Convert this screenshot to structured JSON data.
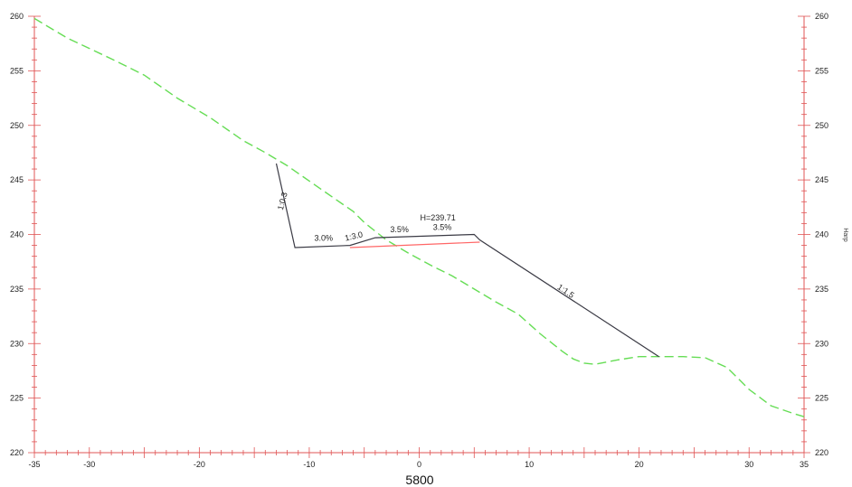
{
  "chart_data": {
    "type": "line",
    "title": "5800",
    "xlabel": "",
    "ylabel": "",
    "right_axis_label": "Нагр",
    "xlim": [
      -35,
      35
    ],
    "ylim": [
      220,
      260
    ],
    "x_ticks": [
      -35,
      -30,
      -20,
      -10,
      0,
      10,
      20,
      30,
      35
    ],
    "y_ticks": [
      220,
      225,
      230,
      235,
      240,
      245,
      250,
      255,
      260
    ],
    "grid": false,
    "colors": {
      "ground": "#66dd55",
      "design": "#3a3a44",
      "subgrade": "#ff6666",
      "axis": "#e05555"
    },
    "series": [
      {
        "name": "",
        "style": "dashed",
        "x": [
          -35,
          -32,
          -28,
          -25,
          -22,
          -19,
          -16,
          -14,
          -12,
          -10,
          -8,
          -6,
          -5,
          -3,
          -1,
          1,
          3,
          5,
          7,
          9,
          11,
          13,
          14,
          15,
          16,
          18,
          20,
          22,
          24,
          26,
          28,
          30,
          32,
          34,
          35
        ],
        "y": [
          259.8,
          258.0,
          256.1,
          254.6,
          252.5,
          250.7,
          248.6,
          247.5,
          246.3,
          244.9,
          243.5,
          242.1,
          241.1,
          239.5,
          238.3,
          237.2,
          236.2,
          235.0,
          233.8,
          232.7,
          230.9,
          229.3,
          228.6,
          228.2,
          228.1,
          228.5,
          228.8,
          228.8,
          228.8,
          228.7,
          227.8,
          225.8,
          224.3,
          223.6,
          223.3
        ]
      },
      {
        "name": "",
        "style": "solid",
        "x": [
          -13,
          -11.3,
          -6.3,
          -4,
          5,
          5.5,
          21.8
        ],
        "y": [
          246.5,
          238.8,
          239.0,
          239.7,
          240.0,
          239.5,
          228.8
        ]
      },
      {
        "name": "",
        "style": "solid",
        "x": [
          -6.3,
          5.5
        ],
        "y": [
          238.8,
          239.3
        ]
      }
    ],
    "annotations": [
      {
        "text": "1:0.3",
        "x": -12.2,
        "y": 243.0,
        "rotate": -75
      },
      {
        "text": "3.0%",
        "x": -8.7,
        "y": 239.4,
        "rotate": 0
      },
      {
        "text": "1:3.0",
        "x": -5.9,
        "y": 239.6,
        "rotate": -13
      },
      {
        "text": "3.5%",
        "x": -1.8,
        "y": 240.2,
        "rotate": 0
      },
      {
        "text": "H=239.71",
        "x": 1.7,
        "y": 241.3,
        "rotate": 0
      },
      {
        "text": "3.5%",
        "x": 2.1,
        "y": 240.4,
        "rotate": 0
      },
      {
        "text": "1:1.5",
        "x": 13.2,
        "y": 234.6,
        "rotate": 34
      }
    ]
  }
}
